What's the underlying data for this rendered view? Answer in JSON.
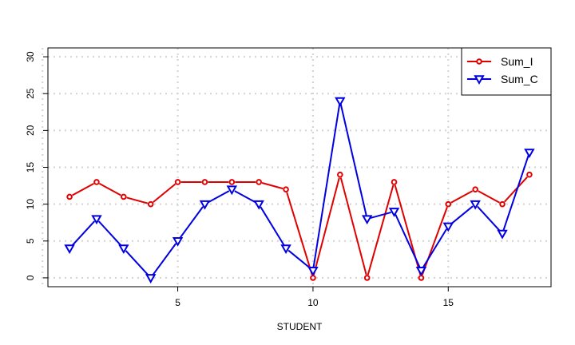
{
  "chart_data": {
    "type": "line",
    "x": [
      1,
      2,
      3,
      4,
      5,
      6,
      7,
      8,
      9,
      10,
      11,
      12,
      13,
      14,
      15,
      16,
      17,
      18
    ],
    "series": [
      {
        "name": "Sum_I",
        "color": "#e00000",
        "marker": "circle",
        "values": [
          11,
          13,
          11,
          10,
          13,
          13,
          13,
          13,
          12,
          0,
          14,
          0,
          13,
          0,
          10,
          12,
          10,
          14
        ]
      },
      {
        "name": "Sum_C",
        "color": "#0000e0",
        "marker": "triangle-down",
        "values": [
          4,
          8,
          4,
          0,
          5,
          10,
          12,
          10,
          4,
          1,
          24,
          8,
          9,
          1,
          7,
          10,
          6,
          17
        ]
      }
    ],
    "xlabel": "STUDENT",
    "ylabel": "",
    "title": "",
    "xlim": [
      0.2,
      18.8
    ],
    "ylim": [
      -1.2,
      31.2
    ],
    "xticks": [
      5,
      10,
      15
    ],
    "yticks": [
      0,
      5,
      10,
      15,
      20,
      25,
      30
    ],
    "grid": true,
    "legend_position": "top-right"
  }
}
